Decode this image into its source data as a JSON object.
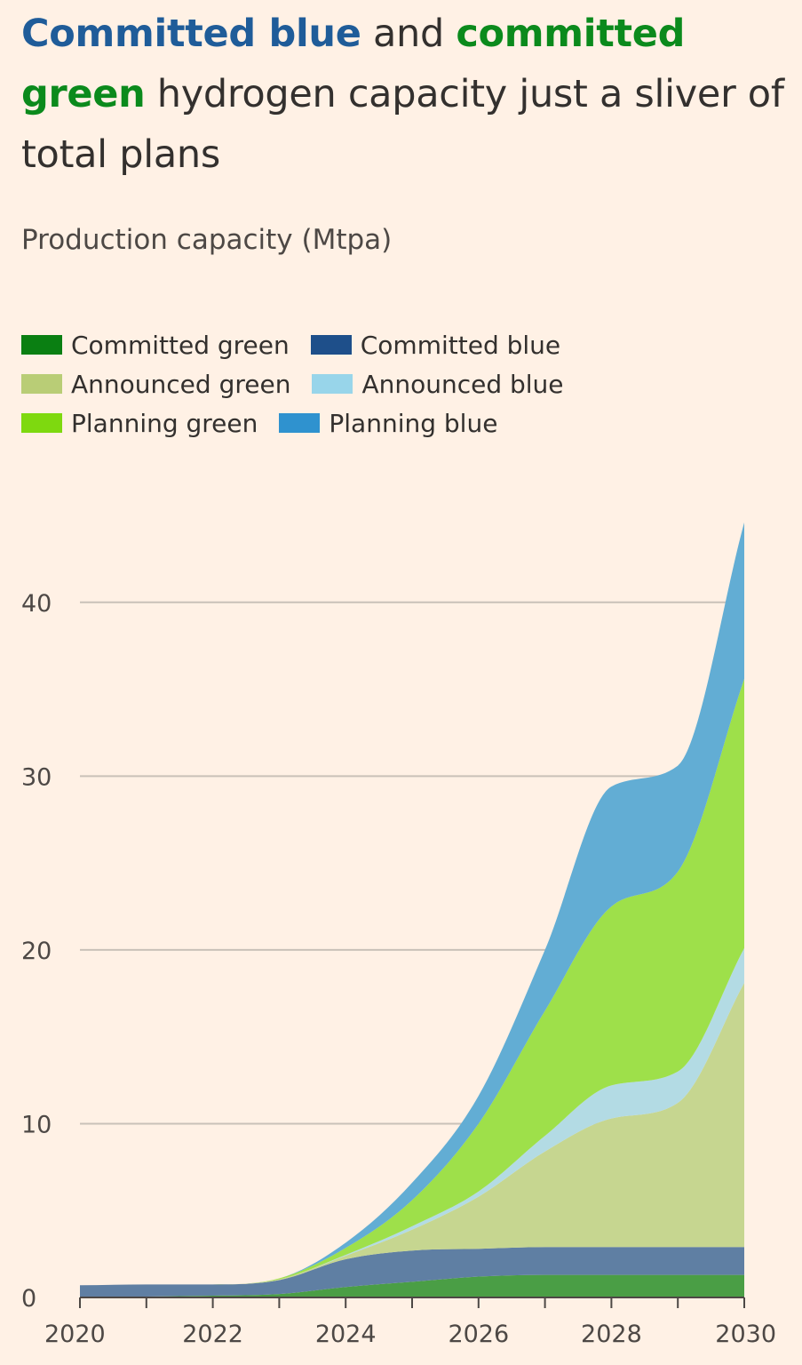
{
  "title": {
    "part1": "Committed blue",
    "part2": " and ",
    "part3": "committed green",
    "part4": " hydrogen capacity just a sliver of total plans"
  },
  "subtitle": "Production capacity (Mtpa)",
  "legend": [
    {
      "label": "Committed green",
      "color": "#0a7f12"
    },
    {
      "label": "Committed blue",
      "color": "#1e4f8a"
    },
    {
      "label": "Announced green",
      "color": "#b9cd76"
    },
    {
      "label": "Announced blue",
      "color": "#98d5ea"
    },
    {
      "label": "Planning green",
      "color": "#7ed90f"
    },
    {
      "label": "Planning blue",
      "color": "#2f92cf"
    }
  ],
  "chart_data": {
    "type": "area",
    "stacked": true,
    "x": [
      2020,
      2021,
      2022,
      2023,
      2024,
      2025,
      2026,
      2027,
      2028,
      2029,
      2030
    ],
    "xticks": [
      "2020",
      "2022",
      "2024",
      "2026",
      "2028",
      "2030"
    ],
    "yticks": [
      "0",
      "10",
      "20",
      "30",
      "40"
    ],
    "ylim": [
      0,
      45
    ],
    "xlim": [
      2020,
      2030
    ],
    "grid": true,
    "series": [
      {
        "name": "Committed green",
        "color": "#4a9e45",
        "values": [
          0.0,
          0.05,
          0.1,
          0.2,
          0.6,
          0.9,
          1.2,
          1.3,
          1.3,
          1.3,
          1.3
        ]
      },
      {
        "name": "Committed blue",
        "color": "#5f7fa3",
        "values": [
          0.7,
          0.7,
          0.65,
          0.8,
          1.6,
          1.8,
          1.6,
          1.6,
          1.6,
          1.6,
          1.6
        ]
      },
      {
        "name": "Announced green",
        "color": "#c6d690",
        "values": [
          0.0,
          0.0,
          0.0,
          0.05,
          0.2,
          1.2,
          3.0,
          5.5,
          7.4,
          8.3,
          15.2
        ]
      },
      {
        "name": "Announced blue",
        "color": "#b3dbe4",
        "values": [
          0.0,
          0.0,
          0.0,
          0.0,
          0.05,
          0.2,
          0.3,
          0.9,
          1.9,
          1.8,
          2.0
        ]
      },
      {
        "name": "Planning green",
        "color": "#9ee04a",
        "values": [
          0.0,
          0.0,
          0.0,
          0.05,
          0.4,
          1.5,
          3.9,
          7.2,
          10.3,
          11.5,
          15.5
        ]
      },
      {
        "name": "Planning blue",
        "color": "#62add4",
        "values": [
          0.0,
          0.0,
          0.0,
          0.0,
          0.3,
          1.0,
          1.6,
          3.5,
          6.9,
          6.1,
          9.0
        ]
      }
    ]
  }
}
